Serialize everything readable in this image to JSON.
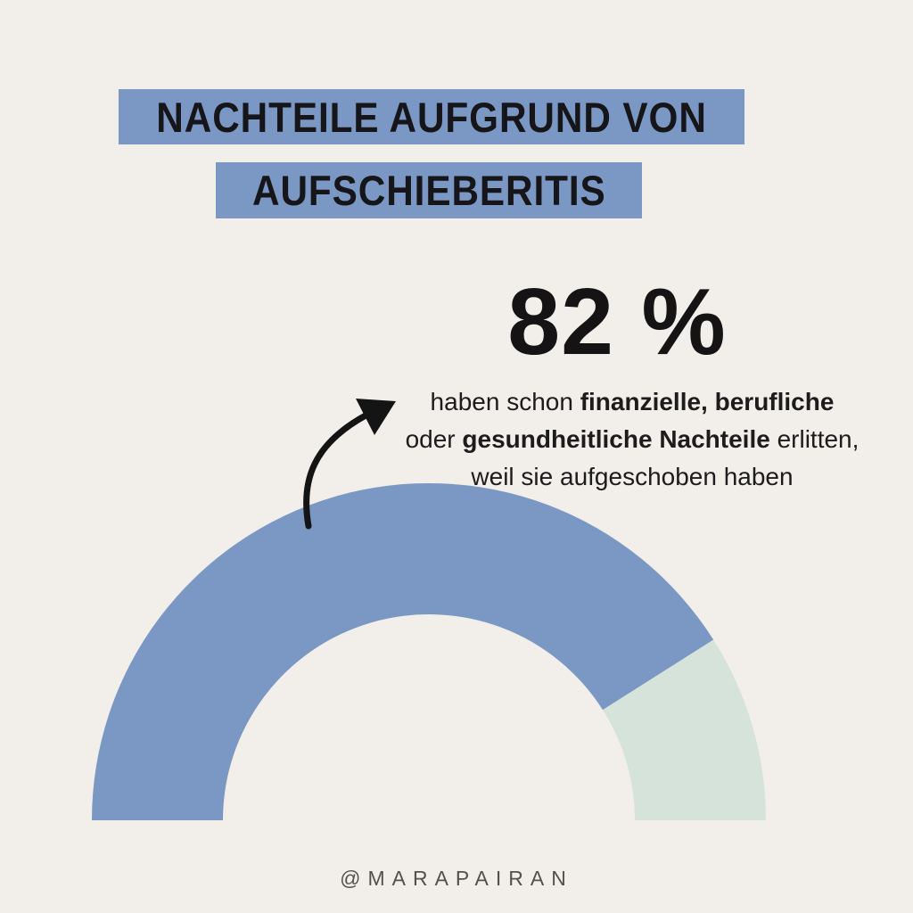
{
  "page": {
    "background_color": "#f2efeb"
  },
  "title": {
    "line1": "NACHTEILE AUFGRUND VON",
    "line2": "AUFSCHIEBERITIS",
    "bar_color": "#7b98c4",
    "text_color": "#15151a"
  },
  "stat": {
    "value": "82 %",
    "description_lines": [
      [
        {
          "text": "haben schon ",
          "bold": false
        },
        {
          "text": "finanzielle,",
          "bold": true
        },
        {
          "text": " ",
          "bold": false
        },
        {
          "text": "berufliche",
          "bold": true
        }
      ],
      [
        {
          "text": "oder ",
          "bold": false
        },
        {
          "text": "gesundheitliche Nachteile",
          "bold": true
        },
        {
          "text": " erlitten,",
          "bold": false
        }
      ],
      [
        {
          "text": "weil sie aufgeschoben haben",
          "bold": false
        }
      ]
    ]
  },
  "chart_data": {
    "type": "pie",
    "variant": "semicircle-donut-gauge",
    "values": [
      82,
      18
    ],
    "segment_names": [
      "value-shown",
      "remainder"
    ],
    "colors": [
      "#7b98c4",
      "#d5e3da"
    ],
    "value_label": "82 %",
    "title": "Nachteile aufgrund von Aufschieberitis",
    "legend": "none",
    "annotation_arrow": "points from blue segment to 82 % text"
  },
  "footer": {
    "handle": "@MARAPAIRAN"
  },
  "colors": {
    "background": "#f2efeb",
    "accent_blue": "#7b98c4",
    "mint": "#d5e3da",
    "text_dark": "#1d1b1c",
    "footer_gray": "#55504b",
    "arrow_black": "#141414"
  }
}
